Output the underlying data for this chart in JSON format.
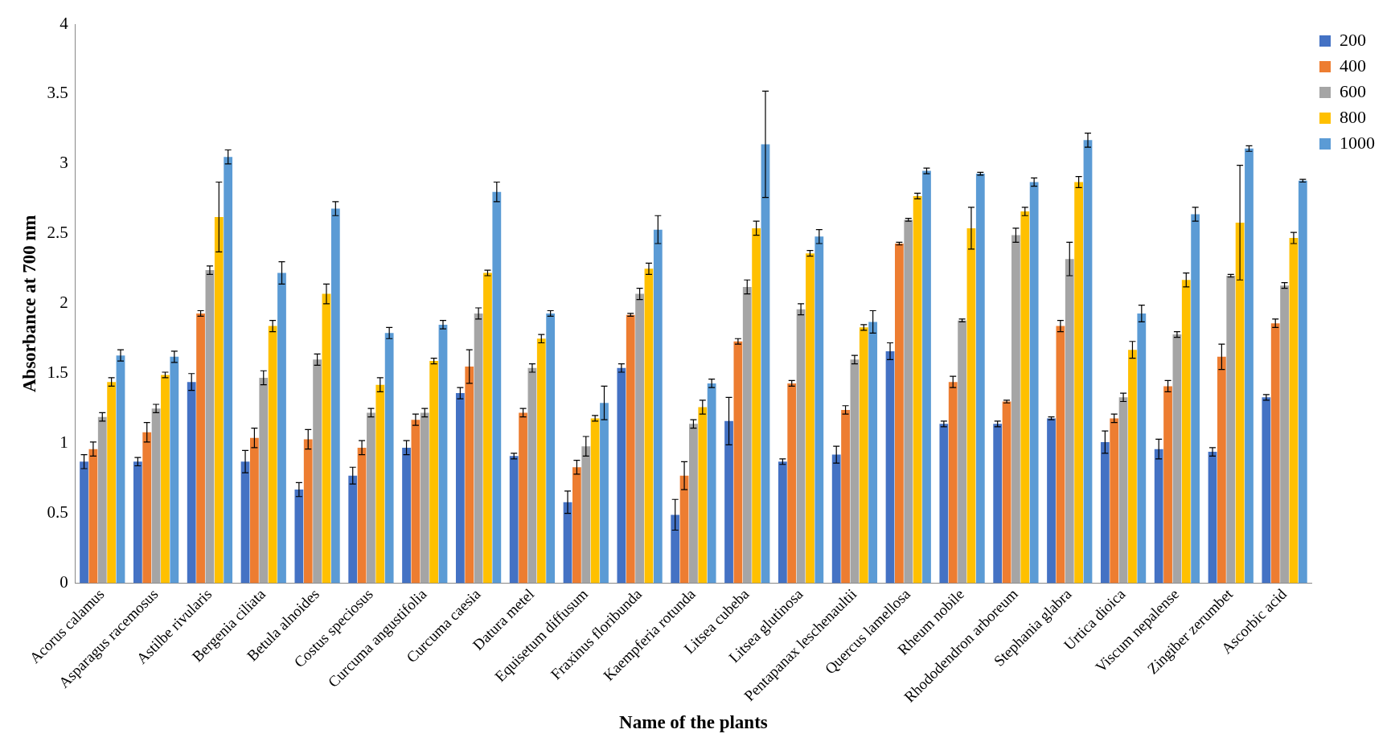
{
  "chart_data": {
    "type": "bar",
    "xlabel": "Name of the plants",
    "ylabel": "Absorbance at 700 nm",
    "categories": [
      "Acorus calamus",
      "Asparagus racemosus",
      "Astilbe rivularis",
      "Bergenia ciliata",
      "Betula alnoides",
      "Costus speciosus",
      "Curcuma angustifolia",
      "Curcuma caesia",
      "Datura metel",
      "Equisetum diffusum",
      "Fraxinus floribunda",
      "Kaempferia rotunda",
      "Litsea cubeba",
      "Litsea glutinosa",
      "Pentapanax leschenaultii",
      "Quercus lamellosa",
      "Rheum nobile",
      "Rhododendron arboreum",
      "Stephania glabra",
      "Urtica dioica",
      "Viscum nepalense",
      "Zingiber zerumbet",
      "Ascorbic acid"
    ],
    "series": [
      {
        "name": "200",
        "color": "#4472c4",
        "values": [
          0.87,
          0.87,
          1.44,
          0.87,
          0.67,
          0.77,
          0.97,
          1.36,
          0.91,
          0.58,
          1.54,
          0.49,
          1.16,
          0.87,
          0.92,
          1.66,
          1.14,
          1.14,
          1.18,
          1.01,
          0.96,
          0.94,
          1.33
        ],
        "errors": [
          0.05,
          0.03,
          0.06,
          0.08,
          0.05,
          0.06,
          0.05,
          0.04,
          0.02,
          0.08,
          0.03,
          0.11,
          0.17,
          0.02,
          0.06,
          0.06,
          0.02,
          0.02,
          0.01,
          0.08,
          0.07,
          0.03,
          0.02
        ]
      },
      {
        "name": "400",
        "color": "#ed7d31",
        "values": [
          0.96,
          1.08,
          1.93,
          1.04,
          1.03,
          0.97,
          1.17,
          1.55,
          1.22,
          0.83,
          1.92,
          0.77,
          1.73,
          1.43,
          1.24,
          2.43,
          1.44,
          1.3,
          1.84,
          1.18,
          1.41,
          1.62,
          1.86
        ],
        "errors": [
          0.05,
          0.07,
          0.02,
          0.07,
          0.07,
          0.05,
          0.04,
          0.12,
          0.03,
          0.05,
          0.01,
          0.1,
          0.02,
          0.02,
          0.03,
          0.01,
          0.04,
          0.01,
          0.04,
          0.03,
          0.04,
          0.09,
          0.03
        ]
      },
      {
        "name": "600",
        "color": "#a5a5a5",
        "values": [
          1.19,
          1.25,
          2.24,
          1.47,
          1.6,
          1.22,
          1.22,
          1.93,
          1.54,
          0.98,
          2.07,
          1.14,
          2.12,
          1.96,
          1.6,
          2.6,
          1.88,
          2.49,
          2.32,
          1.33,
          1.78,
          2.2,
          2.13
        ],
        "errors": [
          0.03,
          0.03,
          0.03,
          0.05,
          0.04,
          0.03,
          0.03,
          0.04,
          0.03,
          0.07,
          0.04,
          0.03,
          0.05,
          0.04,
          0.03,
          0.01,
          0.01,
          0.05,
          0.12,
          0.03,
          0.02,
          0.01,
          0.02
        ]
      },
      {
        "name": "800",
        "color": "#ffc000",
        "values": [
          1.44,
          1.49,
          2.62,
          1.84,
          2.07,
          1.42,
          1.59,
          2.22,
          1.75,
          1.18,
          2.25,
          1.26,
          2.54,
          2.36,
          1.83,
          2.77,
          2.54,
          2.66,
          2.87,
          1.67,
          2.17,
          2.58,
          2.47
        ],
        "errors": [
          0.03,
          0.02,
          0.25,
          0.04,
          0.07,
          0.05,
          0.02,
          0.02,
          0.03,
          0.02,
          0.04,
          0.05,
          0.05,
          0.02,
          0.02,
          0.02,
          0.15,
          0.03,
          0.04,
          0.06,
          0.05,
          0.41,
          0.04
        ]
      },
      {
        "name": "1000",
        "color": "#5b9bd5",
        "values": [
          1.63,
          1.62,
          3.05,
          2.22,
          2.68,
          1.79,
          1.85,
          2.8,
          1.93,
          1.29,
          2.53,
          1.43,
          3.14,
          2.48,
          1.87,
          2.95,
          2.93,
          2.87,
          3.17,
          1.93,
          2.64,
          3.11,
          2.88
        ],
        "errors": [
          0.04,
          0.04,
          0.05,
          0.08,
          0.05,
          0.04,
          0.03,
          0.07,
          0.02,
          0.12,
          0.1,
          0.03,
          0.38,
          0.05,
          0.08,
          0.02,
          0.01,
          0.03,
          0.05,
          0.06,
          0.05,
          0.02,
          0.01
        ]
      }
    ],
    "ylim": [
      0,
      4
    ],
    "yticks": [
      0,
      0.5,
      1,
      1.5,
      2,
      2.5,
      3,
      3.5,
      4
    ],
    "grid": false,
    "legend": "top right"
  }
}
